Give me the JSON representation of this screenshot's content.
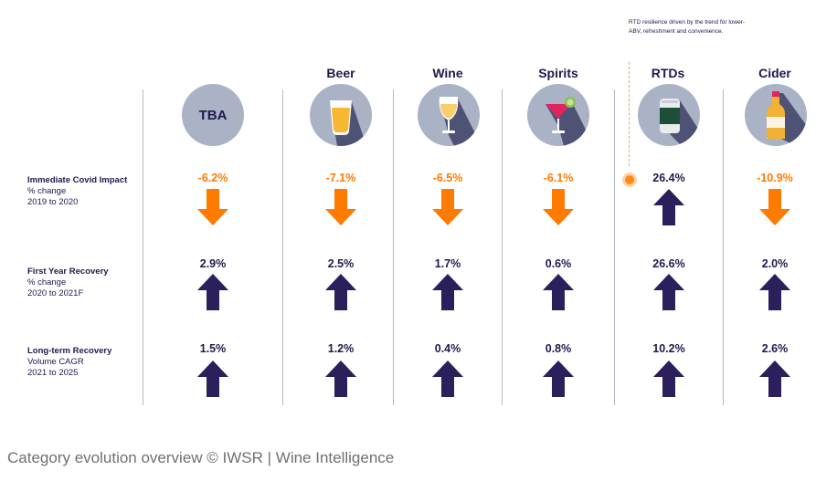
{
  "note": "RTD resilience driven by the trend for lower-ABV, refreshment and convenience.",
  "categories": [
    {
      "label": "",
      "icon": "tba-badge",
      "badge": "TBA"
    },
    {
      "label": "Beer",
      "icon": "beer-glass-icon"
    },
    {
      "label": "Wine",
      "icon": "wine-glass-icon"
    },
    {
      "label": "Spirits",
      "icon": "cocktail-glass-icon"
    },
    {
      "label": "RTDs",
      "icon": "can-icon"
    },
    {
      "label": "Cider",
      "icon": "bottle-icon"
    }
  ],
  "rows": [
    {
      "title": "Immediate Covid Impact",
      "sub1": "% change",
      "sub2": "2019 to 2020",
      "values": [
        "-6.2%",
        "-7.1%",
        "-6.5%",
        "-6.1%",
        "26.4%",
        "-10.9%"
      ],
      "directions": [
        "down",
        "down",
        "down",
        "down",
        "up",
        "down"
      ]
    },
    {
      "title": "First Year Recovery",
      "sub1": "% change",
      "sub2": "2020 to 2021F",
      "values": [
        "2.9%",
        "2.5%",
        "1.7%",
        "0.6%",
        "26.6%",
        "2.0%"
      ],
      "directions": [
        "up",
        "up",
        "up",
        "up",
        "up",
        "up"
      ]
    },
    {
      "title": "Long-term Recovery",
      "sub1": "Volume CAGR",
      "sub2": "2021 to 2025",
      "values": [
        "1.5%",
        "1.2%",
        "0.4%",
        "0.8%",
        "10.2%",
        "2.6%"
      ],
      "directions": [
        "up",
        "up",
        "up",
        "up",
        "up",
        "up"
      ]
    }
  ],
  "caption": "Category evolution overview © IWSR | Wine Intelligence",
  "colors": {
    "down": "#ff7a00",
    "up": "#2b1f5c",
    "circle": "#aab2c6",
    "text": "#1e1a4d"
  }
}
